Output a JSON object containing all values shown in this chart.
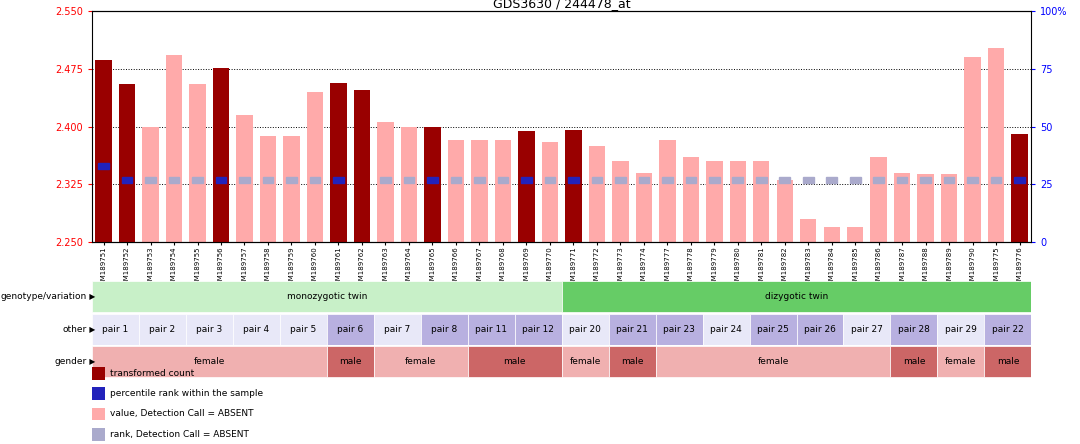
{
  "title": "GDS3630 / 244478_at",
  "ylim": [
    2.25,
    2.55
  ],
  "y2lim": [
    0,
    100
  ],
  "yticks": [
    2.25,
    2.325,
    2.4,
    2.475,
    2.55
  ],
  "y2ticks": [
    0,
    25,
    50,
    75,
    100
  ],
  "hlines": [
    2.325,
    2.4,
    2.475
  ],
  "samples": [
    "GSM189751",
    "GSM189752",
    "GSM189753",
    "GSM189754",
    "GSM189755",
    "GSM189756",
    "GSM189757",
    "GSM189758",
    "GSM189759",
    "GSM189760",
    "GSM189761",
    "GSM189762",
    "GSM189763",
    "GSM189764",
    "GSM189765",
    "GSM189766",
    "GSM189767",
    "GSM189768",
    "GSM189769",
    "GSM189770",
    "GSM189771",
    "GSM189772",
    "GSM189773",
    "GSM189774",
    "GSM189777",
    "GSM189778",
    "GSM189779",
    "GSM189780",
    "GSM189781",
    "GSM189782",
    "GSM189783",
    "GSM189784",
    "GSM189785",
    "GSM189786",
    "GSM189787",
    "GSM189788",
    "GSM189789",
    "GSM189790",
    "GSM189775",
    "GSM189776"
  ],
  "red_values": [
    2.487,
    2.455,
    null,
    null,
    null,
    2.476,
    null,
    null,
    null,
    null,
    2.457,
    2.447,
    null,
    null,
    2.4,
    null,
    null,
    null,
    2.394,
    null,
    2.395,
    null,
    null,
    null,
    null,
    null,
    null,
    null,
    null,
    null,
    null,
    null,
    null,
    null,
    null,
    null,
    null,
    null,
    null,
    2.39
  ],
  "pink_values": [
    null,
    null,
    2.4,
    2.493,
    2.455,
    null,
    2.415,
    2.388,
    2.388,
    2.445,
    null,
    null,
    2.406,
    2.4,
    null,
    2.383,
    2.383,
    2.383,
    null,
    2.38,
    null,
    2.375,
    2.355,
    2.34,
    2.383,
    2.36,
    2.355,
    2.355,
    2.355,
    2.33,
    2.28,
    2.27,
    2.27,
    2.36,
    2.34,
    2.338,
    2.338,
    2.49,
    2.502,
    null
  ],
  "blue_ranks": [
    33,
    27,
    null,
    null,
    null,
    27,
    null,
    null,
    null,
    null,
    27,
    null,
    null,
    null,
    27,
    null,
    null,
    null,
    27,
    null,
    27,
    null,
    null,
    null,
    null,
    null,
    null,
    null,
    null,
    null,
    null,
    null,
    null,
    null,
    null,
    null,
    null,
    null,
    null,
    27
  ],
  "lightblue_ranks": [
    null,
    null,
    27,
    27,
    27,
    null,
    27,
    27,
    27,
    27,
    null,
    null,
    27,
    27,
    null,
    27,
    27,
    27,
    null,
    27,
    null,
    27,
    27,
    27,
    27,
    27,
    27,
    27,
    27,
    27,
    27,
    27,
    27,
    27,
    27,
    27,
    27,
    27,
    27,
    null
  ],
  "genotype_groups": [
    {
      "label": "monozygotic twin",
      "start": 0,
      "end": 20,
      "color": "#c8f0c8"
    },
    {
      "label": "dizygotic twin",
      "start": 20,
      "end": 40,
      "color": "#66cc66"
    }
  ],
  "pair_groups": [
    {
      "label": "pair 1",
      "start": 0,
      "end": 2,
      "color": "#e8e8f8"
    },
    {
      "label": "pair 2",
      "start": 2,
      "end": 4,
      "color": "#e8e8f8"
    },
    {
      "label": "pair 3",
      "start": 4,
      "end": 6,
      "color": "#e8e8f8"
    },
    {
      "label": "pair 4",
      "start": 6,
      "end": 8,
      "color": "#e8e8f8"
    },
    {
      "label": "pair 5",
      "start": 8,
      "end": 10,
      "color": "#e8e8f8"
    },
    {
      "label": "pair 6",
      "start": 10,
      "end": 12,
      "color": "#b8b0e0"
    },
    {
      "label": "pair 7",
      "start": 12,
      "end": 14,
      "color": "#e8e8f8"
    },
    {
      "label": "pair 8",
      "start": 14,
      "end": 16,
      "color": "#b8b0e0"
    },
    {
      "label": "pair 11",
      "start": 16,
      "end": 18,
      "color": "#b8b0e0"
    },
    {
      "label": "pair 12",
      "start": 18,
      "end": 20,
      "color": "#b8b0e0"
    },
    {
      "label": "pair 20",
      "start": 20,
      "end": 22,
      "color": "#e8e8f8"
    },
    {
      "label": "pair 21",
      "start": 22,
      "end": 24,
      "color": "#b8b0e0"
    },
    {
      "label": "pair 23",
      "start": 24,
      "end": 26,
      "color": "#b8b0e0"
    },
    {
      "label": "pair 24",
      "start": 26,
      "end": 28,
      "color": "#e8e8f8"
    },
    {
      "label": "pair 25",
      "start": 28,
      "end": 30,
      "color": "#b8b0e0"
    },
    {
      "label": "pair 26",
      "start": 30,
      "end": 32,
      "color": "#b8b0e0"
    },
    {
      "label": "pair 27",
      "start": 32,
      "end": 34,
      "color": "#e8e8f8"
    },
    {
      "label": "pair 28",
      "start": 34,
      "end": 36,
      "color": "#b8b0e0"
    },
    {
      "label": "pair 29",
      "start": 36,
      "end": 38,
      "color": "#e8e8f8"
    },
    {
      "label": "pair 22",
      "start": 38,
      "end": 40,
      "color": "#b8b0e0"
    }
  ],
  "gender_groups": [
    {
      "label": "female",
      "start": 0,
      "end": 10,
      "color": "#f0b0b0"
    },
    {
      "label": "male",
      "start": 10,
      "end": 12,
      "color": "#cc6666"
    },
    {
      "label": "female",
      "start": 12,
      "end": 16,
      "color": "#f0b0b0"
    },
    {
      "label": "male",
      "start": 16,
      "end": 20,
      "color": "#cc6666"
    },
    {
      "label": "female",
      "start": 20,
      "end": 22,
      "color": "#f0b0b0"
    },
    {
      "label": "male",
      "start": 22,
      "end": 24,
      "color": "#cc6666"
    },
    {
      "label": "female",
      "start": 24,
      "end": 34,
      "color": "#f0b0b0"
    },
    {
      "label": "male",
      "start": 34,
      "end": 36,
      "color": "#cc6666"
    },
    {
      "label": "female",
      "start": 36,
      "end": 38,
      "color": "#f0b0b0"
    },
    {
      "label": "male",
      "start": 38,
      "end": 40,
      "color": "#cc6666"
    }
  ],
  "bar_width": 0.7,
  "baseline": 2.25,
  "red_color": "#990000",
  "pink_color": "#ffaaaa",
  "blue_color": "#2222bb",
  "lightblue_color": "#aaaacc",
  "legend_items": [
    {
      "color": "#990000",
      "label": "transformed count"
    },
    {
      "color": "#2222bb",
      "label": "percentile rank within the sample"
    },
    {
      "color": "#ffaaaa",
      "label": "value, Detection Call = ABSENT"
    },
    {
      "color": "#aaaacc",
      "label": "rank, Detection Call = ABSENT"
    }
  ]
}
